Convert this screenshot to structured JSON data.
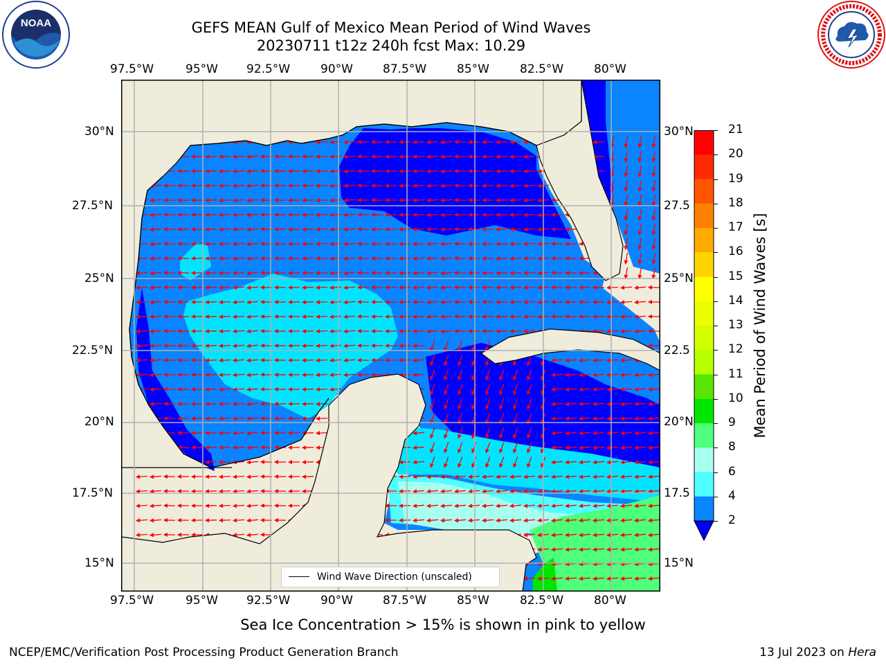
{
  "title": {
    "line1": "GEFS MEAN Gulf of Mexico Mean Period of Wind Waves",
    "line2": "20230711 t12z 240h fcst   Max: 10.29"
  },
  "map": {
    "lon_labels": [
      "97.5°W",
      "95°W",
      "92.5°W",
      "90°W",
      "87.5°W",
      "85°W",
      "82.5°W",
      "80°W"
    ],
    "lat_labels": [
      "30°N",
      "27.5°N",
      "25°N",
      "22.5°N",
      "20°N",
      "17.5°N",
      "15°N"
    ],
    "right_lat_labels": [
      "30°N",
      "27.5",
      "25°N",
      "22.5",
      "20°N",
      "17.5",
      "15°N"
    ],
    "legend_text": "Wind Wave Direction (unscaled)",
    "colors": {
      "land": "#efecdc",
      "coast": "#000000",
      "grid": "#b0b0b0",
      "arrow": "#ff0000"
    }
  },
  "colorbar": {
    "label": "Mean Period of Wind Waves [s]",
    "ticks": [
      "21",
      "20",
      "19",
      "18",
      "17",
      "16",
      "15",
      "14",
      "13",
      "12",
      "11",
      "10",
      "9",
      "8",
      "6",
      "4",
      "2"
    ],
    "colors": [
      "#ff0000",
      "#ff2a00",
      "#ff5500",
      "#ff8000",
      "#ffaa00",
      "#ffd400",
      "#ffff00",
      "#eaff00",
      "#d4ff00",
      "#b4ff00",
      "#5ae600",
      "#00e600",
      "#4dff7a",
      "#a8fff0",
      "#50ffff",
      "#00e5ff",
      "#0a84ff"
    ],
    "extend_color": "#0000ff"
  },
  "subtitle": "Sea Ice Concentration > 15% is shown in pink to yellow",
  "footer": {
    "left": "NCEP/EMC/Verification Post Processing Product Generation Branch",
    "right_date": "13 Jul 2023 on ",
    "right_host": "Hera"
  },
  "logos": {
    "noaa_text": "NOAA",
    "noaa_ring": "NATIONAL OCEANIC AND ATMOSPHERIC ADMINISTRATION · U.S. DEPARTMENT OF COMMERCE",
    "nws_ring": "NATIONAL WEATHER SERVICE"
  }
}
